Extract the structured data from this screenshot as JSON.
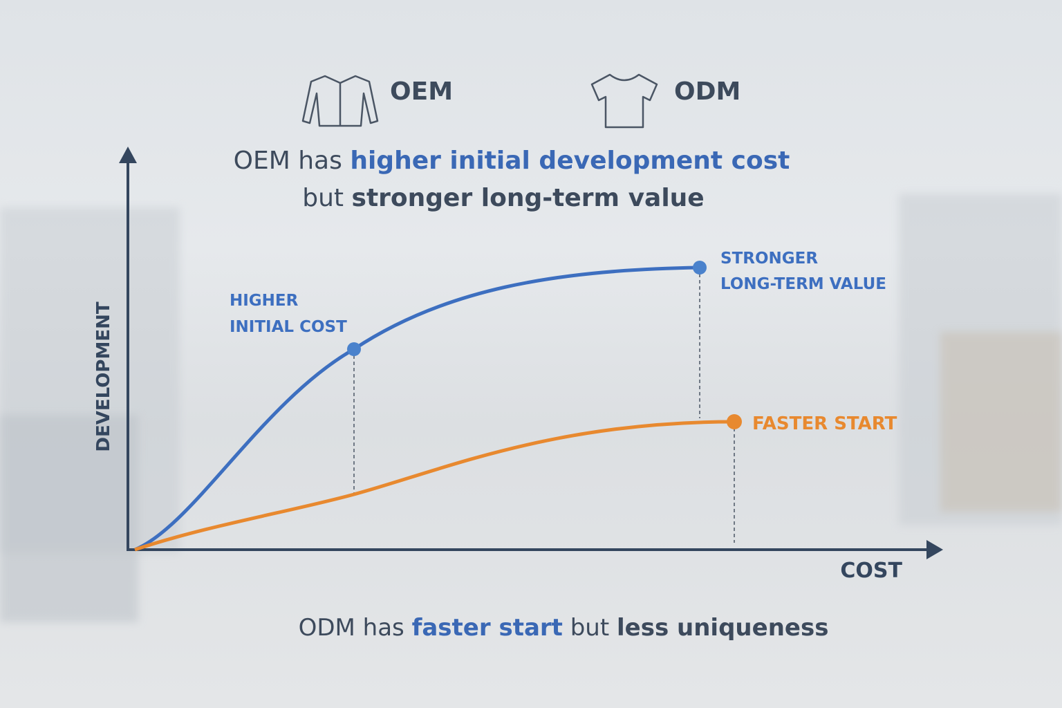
{
  "legend": [
    {
      "label": "OEM"
    },
    {
      "label": "ODM"
    }
  ],
  "headline": {
    "line1": {
      "plain": "OEM has",
      "highlight": "higher initial development cost"
    },
    "line2": {
      "plain": "but",
      "strong": "stronger long-term value"
    }
  },
  "axes": {
    "y_label": "DEVELOPMENT",
    "x_label": "COST"
  },
  "annotations": {
    "higher_initial_cost": [
      "HIGHER",
      "INITIAL COST"
    ],
    "stronger_value": [
      "STRONGER",
      "LONG-TERM VALUE"
    ],
    "faster_start": "FASTER START"
  },
  "footer": {
    "part1": "ODM has",
    "highlight": "faster start",
    "part2": "but",
    "strong": "less uniqueness"
  }
}
